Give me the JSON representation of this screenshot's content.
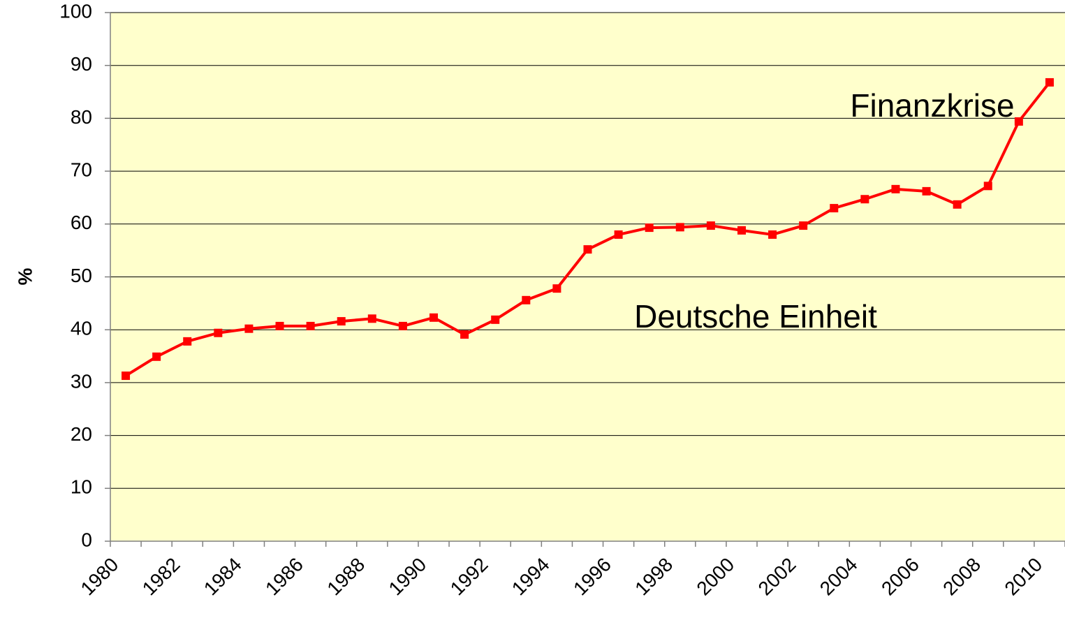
{
  "chart_data": {
    "type": "line",
    "y_label": "%",
    "categories": [
      "1980",
      null,
      "1982",
      null,
      "1984",
      null,
      "1986",
      null,
      "1988",
      null,
      "1990",
      null,
      "1992",
      null,
      "1994",
      null,
      "1996",
      null,
      "1998",
      null,
      "2000",
      null,
      "2002",
      null,
      "2004",
      null,
      "2006",
      null,
      "2008",
      null,
      "2010"
    ],
    "series": [
      {
        "name": null,
        "color": "#ff0000",
        "values": [
          31.3,
          34.9,
          37.8,
          39.4,
          40.2,
          40.7,
          40.7,
          41.6,
          42.1,
          40.7,
          42.3,
          39.1,
          41.9,
          45.6,
          47.8,
          55.2,
          58.0,
          59.3,
          59.4,
          59.7,
          58.8,
          58.0,
          59.7,
          63.0,
          64.7,
          66.6,
          66.2,
          63.7,
          67.2,
          79.4,
          86.8
        ]
      }
    ],
    "ylim": [
      0,
      100
    ],
    "yticks": [
      0,
      10,
      20,
      30,
      40,
      50,
      60,
      70,
      80,
      90,
      100
    ],
    "grid": true,
    "background": "#ffffcc",
    "annotations": [
      {
        "text": "Finanzkrise"
      },
      {
        "text": "Deutsche Einheit"
      }
    ]
  }
}
